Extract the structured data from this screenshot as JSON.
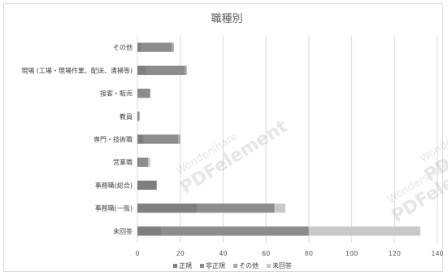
{
  "chart_data": {
    "type": "bar",
    "orientation": "horizontal",
    "stacked": true,
    "title": "職種別",
    "categories": [
      "その他",
      "現場 (工場・現場作業、配送、清掃等)",
      "接客・販売",
      "教員",
      "専門・技術職",
      "営業職",
      "事務職(総合)",
      "事務職(一般)",
      "未回答"
    ],
    "series": [
      {
        "name": "正規",
        "color": "#7f7f7f",
        "values": [
          2,
          4,
          0,
          0,
          3,
          1,
          9,
          28,
          11
        ]
      },
      {
        "name": "非正規",
        "color": "#8c8c8c",
        "values": [
          14,
          18,
          6,
          1,
          16,
          4,
          0,
          36,
          69
        ]
      },
      {
        "name": "その他",
        "color": "#a6a6a6",
        "values": [
          1,
          1,
          0,
          0,
          1,
          0,
          0,
          0,
          0
        ]
      },
      {
        "name": "未回答",
        "color": "#c8c8c8",
        "values": [
          0,
          0,
          0,
          0,
          0,
          1,
          0,
          5,
          52
        ]
      }
    ],
    "xlim": [
      0,
      140
    ],
    "xticks": [
      0,
      20,
      40,
      60,
      80,
      100,
      120,
      140
    ],
    "grid": true,
    "legend_position": "bottom"
  },
  "watermarks": [
    {
      "line1": "Wondershare",
      "line2": "PDFelement"
    },
    {
      "line1": "Wondershare",
      "line2": "PDFelement"
    },
    {
      "line1": "Wondershare",
      "line2": "PDFelement"
    }
  ]
}
